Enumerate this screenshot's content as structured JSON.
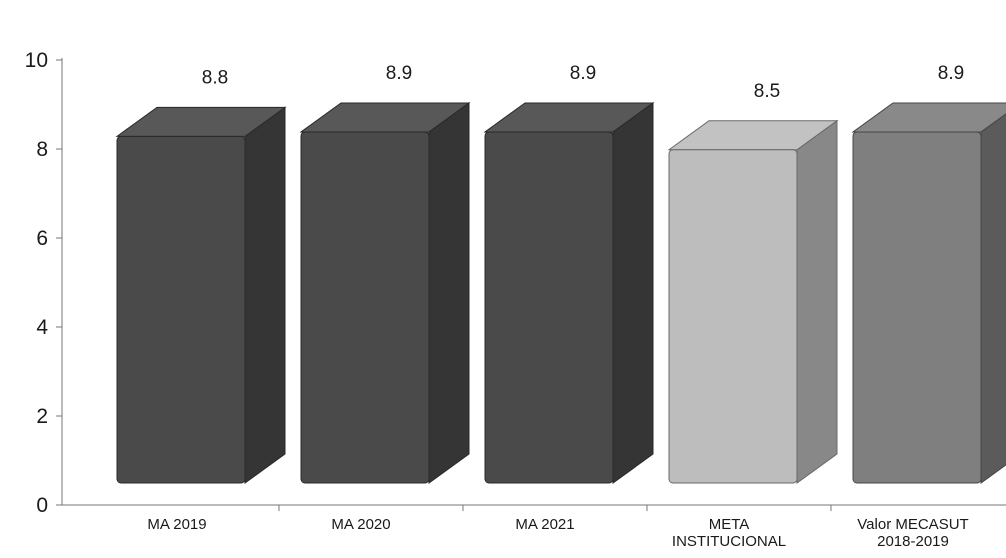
{
  "chart_data": {
    "type": "bar",
    "style": "3d",
    "categories": [
      [
        "MA 2019"
      ],
      [
        "MA 2020"
      ],
      [
        "MA 2021"
      ],
      [
        "META",
        "INSTITUCIONAL"
      ],
      [
        "Valor MECASUT",
        "2018-2019"
      ]
    ],
    "values": [
      8.8,
      8.9,
      8.9,
      8.5,
      8.9
    ],
    "value_labels": [
      "8.8",
      "8.9",
      "8.9",
      "8.5",
      "8.9"
    ],
    "ylim": [
      0,
      10
    ],
    "yticks": [
      "0",
      "2",
      "4",
      "6",
      "8",
      "10"
    ],
    "grid": false,
    "bar_colors": [
      "#4a4a4a",
      "#4a4a4a",
      "#4a4a4a",
      "#bdbdbd",
      "#7f7f7f"
    ],
    "title": "",
    "xlabel": "",
    "ylabel": ""
  }
}
